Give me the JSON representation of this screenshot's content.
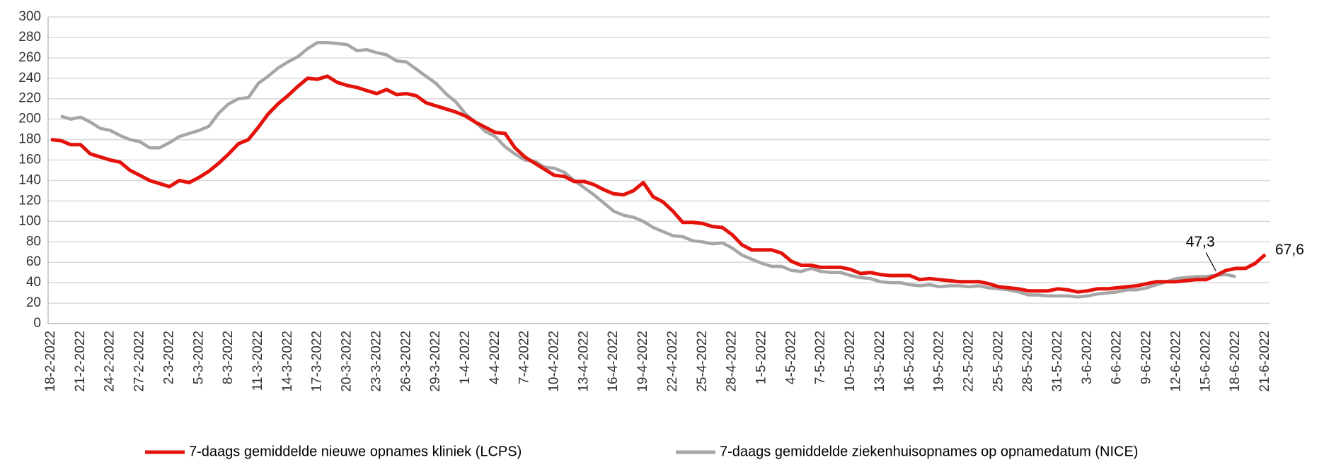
{
  "chart_data": {
    "type": "line",
    "categories": [
      "18-2-2022",
      null,
      null,
      "21-2-2022",
      null,
      null,
      "24-2-2022",
      null,
      null,
      "27-2-2022",
      null,
      null,
      "2-3-2022",
      null,
      null,
      "5-3-2022",
      null,
      null,
      "8-3-2022",
      null,
      null,
      "11-3-2022",
      null,
      null,
      "14-3-2022",
      null,
      null,
      "17-3-2022",
      null,
      null,
      "20-3-2022",
      null,
      null,
      "23-3-2022",
      null,
      null,
      "26-3-2022",
      null,
      null,
      "29-3-2022",
      null,
      null,
      "1-4-2022",
      null,
      null,
      "4-4-2022",
      null,
      null,
      "7-4-2022",
      null,
      null,
      "10-4-2022",
      null,
      null,
      "13-4-2022",
      null,
      null,
      "16-4-2022",
      null,
      null,
      "19-4-2022",
      null,
      null,
      "22-4-2022",
      null,
      null,
      "25-4-2022",
      null,
      null,
      "28-4-2022",
      null,
      null,
      "1-5-2022",
      null,
      null,
      "4-5-2022",
      null,
      null,
      "7-5-2022",
      null,
      null,
      "10-5-2022",
      null,
      null,
      "13-5-2022",
      null,
      null,
      "16-5-2022",
      null,
      null,
      "19-5-2022",
      null,
      null,
      "22-5-2022",
      null,
      null,
      "25-5-2022",
      null,
      null,
      "28-5-2022",
      null,
      null,
      "31-5-2022",
      null,
      null,
      "3-6-2022",
      null,
      null,
      "6-6-2022",
      null,
      null,
      "9-6-2022",
      null,
      null,
      "12-6-2022",
      null,
      null,
      "15-6-2022",
      null,
      null,
      "18-6-2022",
      null,
      null,
      "21-6-2022"
    ],
    "series": [
      {
        "name": "7-daags gemiddelde nieuwe opnames kliniek (LCPS)",
        "color": "#e3120b",
        "values": [
          180,
          179,
          175,
          175,
          166,
          163,
          160,
          158,
          150,
          145,
          140,
          137,
          134,
          140,
          138,
          143,
          149,
          157,
          166,
          176,
          180,
          192,
          205,
          215,
          223,
          232,
          240,
          239,
          242,
          236,
          233,
          231,
          228,
          225,
          229,
          224,
          225,
          223,
          216,
          213,
          210,
          207,
          203,
          197,
          192,
          187,
          186,
          172,
          163,
          157,
          151,
          145,
          144,
          139,
          139,
          136,
          131,
          127,
          126,
          130,
          138,
          124,
          119,
          110,
          99,
          99,
          98,
          95,
          94,
          87,
          77,
          72,
          72,
          72,
          69,
          61,
          57,
          57,
          55,
          55,
          55,
          53,
          49,
          50,
          48,
          47,
          47,
          47,
          43,
          44,
          43,
          42,
          41,
          41,
          41,
          39,
          36,
          35,
          34,
          32,
          32,
          32,
          34,
          33,
          31,
          32,
          34,
          34,
          35,
          36,
          37,
          39,
          41,
          41,
          41,
          42,
          43,
          43,
          47,
          52,
          54,
          54,
          59,
          67.6
        ],
        "value_labels": [
          null,
          null,
          null,
          null,
          null,
          null,
          null,
          null,
          null,
          null,
          null,
          null,
          null,
          null,
          null,
          null,
          null,
          null,
          null,
          null,
          null,
          null,
          null,
          null,
          null,
          null,
          null,
          null,
          null,
          null,
          null,
          null,
          null,
          null,
          null,
          null,
          null,
          null,
          null,
          null,
          null,
          null,
          null,
          null,
          null,
          null,
          null,
          null,
          null,
          null,
          null,
          null,
          null,
          null,
          null,
          null,
          null,
          null,
          null,
          null,
          null,
          null,
          null,
          null,
          null,
          null,
          null,
          null,
          null,
          null,
          null,
          null,
          null,
          null,
          null,
          null,
          null,
          null,
          null,
          null,
          null,
          null,
          null,
          null,
          null,
          null,
          null,
          null,
          null,
          null,
          null,
          null,
          null,
          null,
          null,
          null,
          null,
          null,
          null,
          null,
          null,
          null,
          null,
          null,
          null,
          null,
          null,
          null,
          null,
          null,
          null,
          null,
          null,
          null,
          null,
          null,
          null,
          null,
          null,
          null,
          null,
          null,
          null,
          "67,6"
        ]
      },
      {
        "name": "7-daags gemiddelde ziekenhuisopnames op opnamedatum (NICE)",
        "color": "#a6a6a6",
        "values": [
          null,
          203,
          200,
          202,
          197,
          191,
          189,
          184,
          180,
          178,
          172,
          172,
          177,
          183,
          186,
          189,
          193,
          206,
          215,
          220,
          221,
          235,
          242,
          250,
          256,
          261,
          269,
          275,
          275,
          274,
          273,
          267,
          268,
          265,
          263,
          257,
          256,
          249,
          242,
          235,
          225,
          217,
          205,
          197,
          188,
          183,
          173,
          166,
          160,
          159,
          153,
          152,
          148,
          140,
          133,
          126,
          118,
          110,
          106,
          104,
          100,
          94,
          90,
          86,
          85,
          81,
          80,
          78,
          79,
          74,
          67,
          63,
          59,
          56,
          56,
          52,
          51,
          54,
          51,
          50,
          50,
          47,
          45,
          44,
          41,
          40,
          40,
          38,
          37,
          38,
          36,
          37,
          37,
          36,
          37,
          35,
          34,
          33,
          31,
          28,
          28,
          27,
          27,
          27,
          26,
          27,
          29,
          30,
          31,
          33,
          33,
          35,
          38,
          41,
          44,
          45,
          46,
          46,
          47.3,
          48,
          46,
          null,
          null,
          null
        ],
        "value_labels": [
          null,
          null,
          null,
          null,
          null,
          null,
          null,
          null,
          null,
          null,
          null,
          null,
          null,
          null,
          null,
          null,
          null,
          null,
          null,
          null,
          null,
          null,
          null,
          null,
          null,
          null,
          null,
          null,
          null,
          null,
          null,
          null,
          null,
          null,
          null,
          null,
          null,
          null,
          null,
          null,
          null,
          null,
          null,
          null,
          null,
          null,
          null,
          null,
          null,
          null,
          null,
          null,
          null,
          null,
          null,
          null,
          null,
          null,
          null,
          null,
          null,
          null,
          null,
          null,
          null,
          null,
          null,
          null,
          null,
          null,
          null,
          null,
          null,
          null,
          null,
          null,
          null,
          null,
          null,
          null,
          null,
          null,
          null,
          null,
          null,
          null,
          null,
          null,
          null,
          null,
          null,
          null,
          null,
          null,
          null,
          null,
          null,
          null,
          null,
          null,
          null,
          null,
          null,
          null,
          null,
          null,
          null,
          null,
          null,
          null,
          null,
          null,
          null,
          null,
          null,
          null,
          null,
          null,
          "47,3",
          null,
          null,
          null,
          null,
          null
        ]
      }
    ],
    "ylim": [
      0,
      300
    ],
    "yticks": [
      0,
      20,
      40,
      60,
      80,
      100,
      120,
      140,
      160,
      180,
      200,
      220,
      240,
      260,
      280,
      300
    ],
    "grid": true,
    "legend": "bottom"
  }
}
